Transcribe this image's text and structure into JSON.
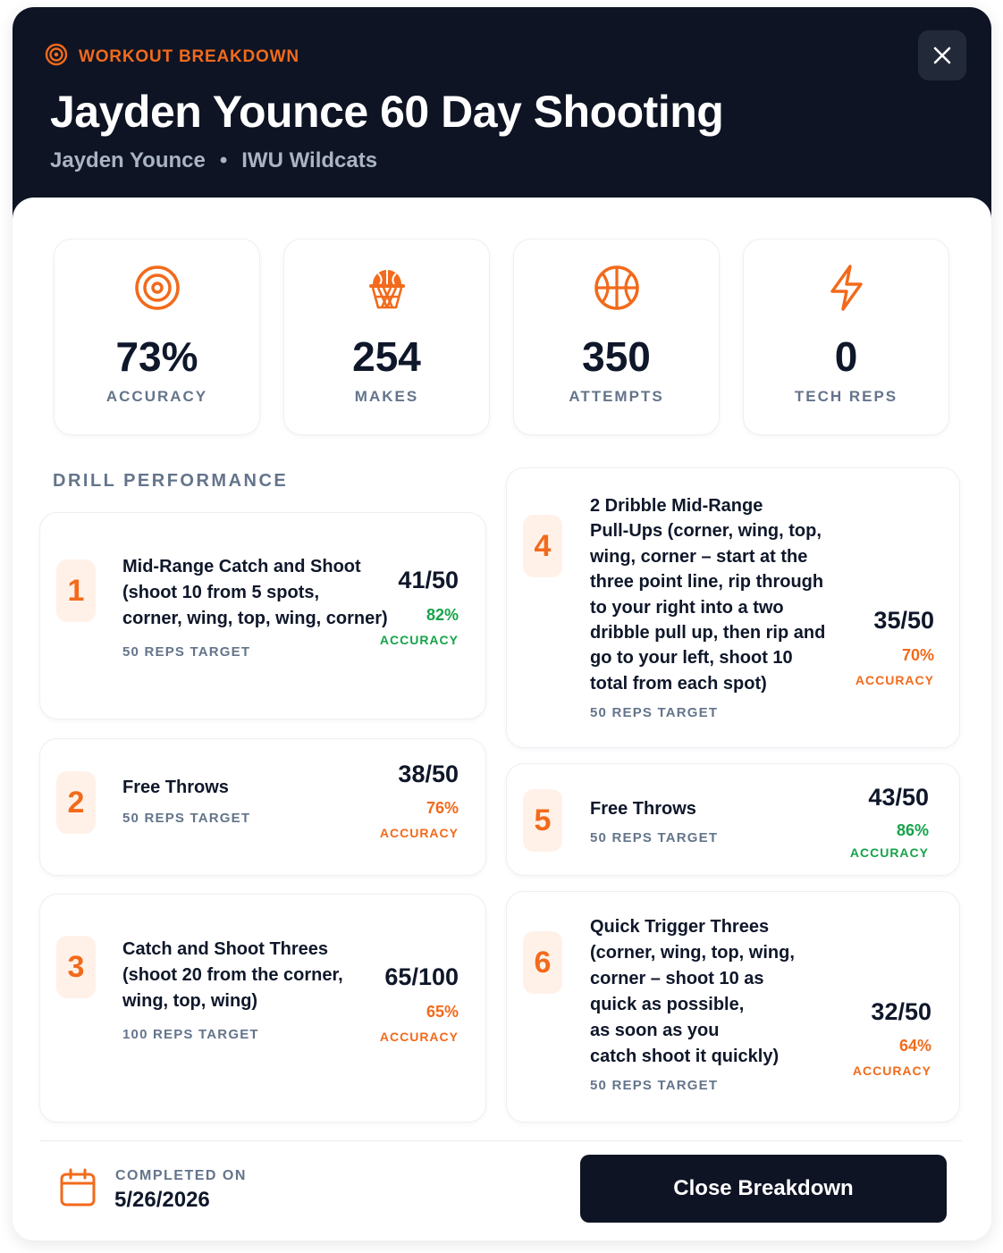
{
  "header": {
    "eyebrow": "WORKOUT BREAKDOWN",
    "title": "Jayden Younce 60 Day Shooting",
    "player": "Jayden Younce",
    "separator": "•",
    "team": "IWU Wildcats"
  },
  "stats": [
    {
      "value": "73%",
      "label": "ACCURACY",
      "icon": "target-icon"
    },
    {
      "value": "254",
      "label": "MAKES",
      "icon": "basketball-hoop-icon"
    },
    {
      "value": "350",
      "label": "ATTEMPTS",
      "icon": "basketball-icon"
    },
    {
      "value": "0",
      "label": "TECH REPS",
      "icon": "lightning-icon"
    }
  ],
  "section_label": "DRILL PERFORMANCE",
  "drills": [
    {
      "num": "1",
      "lines": [
        "Mid-Range Catch and Shoot",
        "(shoot 10 from 5 spots,",
        "corner, wing, top, wing, corner)"
      ],
      "target": "50 REPS TARGET",
      "score": "41/50",
      "pct": "82%",
      "acc": "ACCURACY",
      "status_color": "#16a34a"
    },
    {
      "num": "2",
      "lines": [
        "Free Throws"
      ],
      "target": "50 REPS TARGET",
      "score": "38/50",
      "pct": "76%",
      "acc": "ACCURACY",
      "status_color": "#f26a1b"
    },
    {
      "num": "3",
      "lines": [
        "Catch and Shoot Threes",
        "(shoot 20 from the corner,",
        "wing, top, wing)"
      ],
      "target": "100 REPS TARGET",
      "score": "65/100",
      "pct": "65%",
      "acc": "ACCURACY",
      "status_color": "#f26a1b"
    },
    {
      "num": "4",
      "lines": [
        "2 Dribble Mid-Range",
        "Pull-Ups (corner, wing, top,",
        "wing, corner – start at the",
        "three point line, rip through",
        "to your right into a two",
        "dribble pull up, then rip and",
        "go to your left, shoot 10",
        "total from each spot)"
      ],
      "target": "50 REPS TARGET",
      "score": "35/50",
      "pct": "70%",
      "acc": "ACCURACY",
      "status_color": "#f26a1b"
    },
    {
      "num": "5",
      "lines": [
        "Free Throws"
      ],
      "target": "50 REPS TARGET",
      "score": "43/50",
      "pct": "86%",
      "acc": "ACCURACY",
      "status_color": "#16a34a"
    },
    {
      "num": "6",
      "lines": [
        "Quick Trigger Threes",
        "(corner, wing, top, wing,",
        "corner – shoot 10 as",
        "quick as possible,",
        "as soon as you",
        "catch shoot it quickly)"
      ],
      "target": "50 REPS TARGET",
      "score": "32/50",
      "pct": "64%",
      "acc": "ACCURACY",
      "status_color": "#f26a1b"
    }
  ],
  "footer": {
    "completed_label": "COMPLETED ON",
    "completed_date": "5/26/2026",
    "close_label": "Close Breakdown"
  },
  "colors": {
    "accent": "#f26a1b",
    "dark": "#0e1424",
    "good": "#16a34a"
  }
}
